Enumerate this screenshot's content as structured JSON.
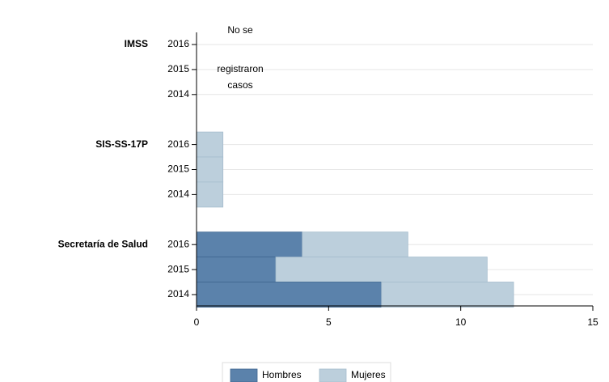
{
  "chart_data": {
    "type": "bar",
    "orientation": "horizontal",
    "stacked": true,
    "categories": [
      "2016",
      "2015",
      "2014",
      "2016",
      "2015",
      "2014",
      "2016",
      "2015",
      "2014"
    ],
    "group_labels": [
      "IMSS",
      null,
      null,
      "SIS-SS-17P",
      null,
      null,
      "Secretaría de Salud",
      null,
      null
    ],
    "series": [
      {
        "name": "Hombres",
        "color": "#5b82ab",
        "values": [
          null,
          null,
          null,
          0,
          0,
          0,
          4,
          3,
          7
        ]
      },
      {
        "name": "Mujeres",
        "color": "#bccfdc",
        "values": [
          null,
          null,
          null,
          1,
          1,
          1,
          4,
          8,
          5
        ]
      }
    ],
    "annotation": [
      "No se",
      "registraron",
      "casos"
    ],
    "xlim": [
      0,
      15
    ],
    "xticks": [
      0,
      5,
      10,
      15
    ],
    "grid": true,
    "legend": "bottom"
  }
}
